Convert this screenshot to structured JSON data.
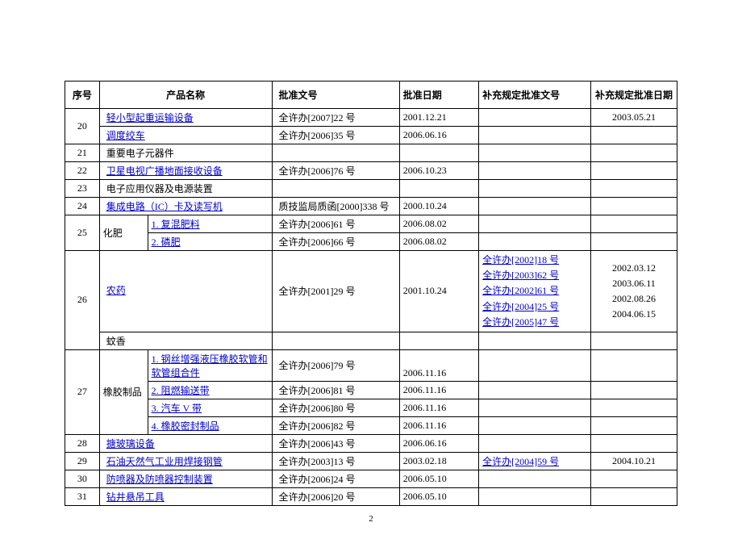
{
  "headers": {
    "seq": "序号",
    "product": "产品名称",
    "approval": "批准文号",
    "date": "批准日期",
    "supp": "补充规定批准文号",
    "supp_date": "补充规定批准日期"
  },
  "rows": {
    "r20_1": {
      "seq": "20",
      "name": "轻小型起重运输设备",
      "approval": "全许办[2007]22 号",
      "date": "2001.12.21",
      "supp_date": "2003.05.21"
    },
    "r20_2": {
      "name": "调度绞车",
      "approval": "全许办[2006]35 号",
      "date": "2006.06.16"
    },
    "r21": {
      "seq": "21",
      "name": "重要电子元器件"
    },
    "r22": {
      "seq": "22",
      "name": "卫星电视广播地面接收设备",
      "approval": "全许办[2006]76 号",
      "date": "2006.10.23"
    },
    "r23": {
      "seq": "23",
      "name": "电子应用仪器及电源装置"
    },
    "r24": {
      "seq": "24",
      "name": "集成电路（IC）卡及读写机",
      "approval": "质技监局质函[2000]338 号",
      "date": "2000.10.24"
    },
    "r25_1": {
      "seq": "25",
      "cat": "化肥",
      "name": "1. 复混肥料",
      "approval": "全许办[2006]61 号",
      "date": "2006.08.02"
    },
    "r25_2": {
      "name": "2. 磷肥",
      "approval": "全许办[2006]66 号",
      "date": "2006.08.02"
    },
    "r26_1": {
      "seq": "26",
      "name": "农药",
      "approval": "全许办[2001]29 号",
      "date": "2001.10.24",
      "supp1": "全许办[2002]18 号",
      "supp2": "全许办[2003]62 号",
      "supp3": "全许办[2002]61 号",
      "supp4": "全许办[2004]25 号",
      "supp5": "全许办[2005]47 号",
      "sd1": "2002.03.12",
      "sd2": "2003.06.11",
      "sd3": "2002.08.26",
      "sd4": "2004.06.15"
    },
    "r26_2": {
      "name": "蚊香"
    },
    "r27_1": {
      "seq": "27",
      "cat": "橡胶制品",
      "name": "1. 钢丝增强液压橡胶软管和软管组合件",
      "approval": "全许办[2006]79 号",
      "date": "2006.11.16"
    },
    "r27_2": {
      "name": "2. 阻燃输送带",
      "approval": "全许办[2006]81 号",
      "date": "2006.11.16"
    },
    "r27_3": {
      "name": "3. 汽车 V 带",
      "approval": "全许办[2006]80 号",
      "date": "2006.11.16"
    },
    "r27_4": {
      "name": "4. 橡胶密封制品",
      "approval": "全许办[2006]82 号",
      "date": "2006.11.16"
    },
    "r28": {
      "seq": "28",
      "name": "搪玻璃设备",
      "approval": "全许办[2006]43 号",
      "date": "2006.06.16"
    },
    "r29": {
      "seq": "29",
      "name": "石油天然气工业用焊接钢管",
      "approval": "全许办[2003]13 号",
      "date": "2003.02.18",
      "supp": "全许办[2004]59 号",
      "supp_date": "2004.10.21"
    },
    "r30": {
      "seq": "30",
      "name": "防喷器及防喷器控制装置",
      "approval": "全许办[2006]24 号",
      "date": "2006.05.10"
    },
    "r31": {
      "seq": "31",
      "name": "钻井悬吊工具",
      "approval": "全许办[2006]20 号",
      "date": "2006.05.10"
    }
  },
  "page_number": "2"
}
